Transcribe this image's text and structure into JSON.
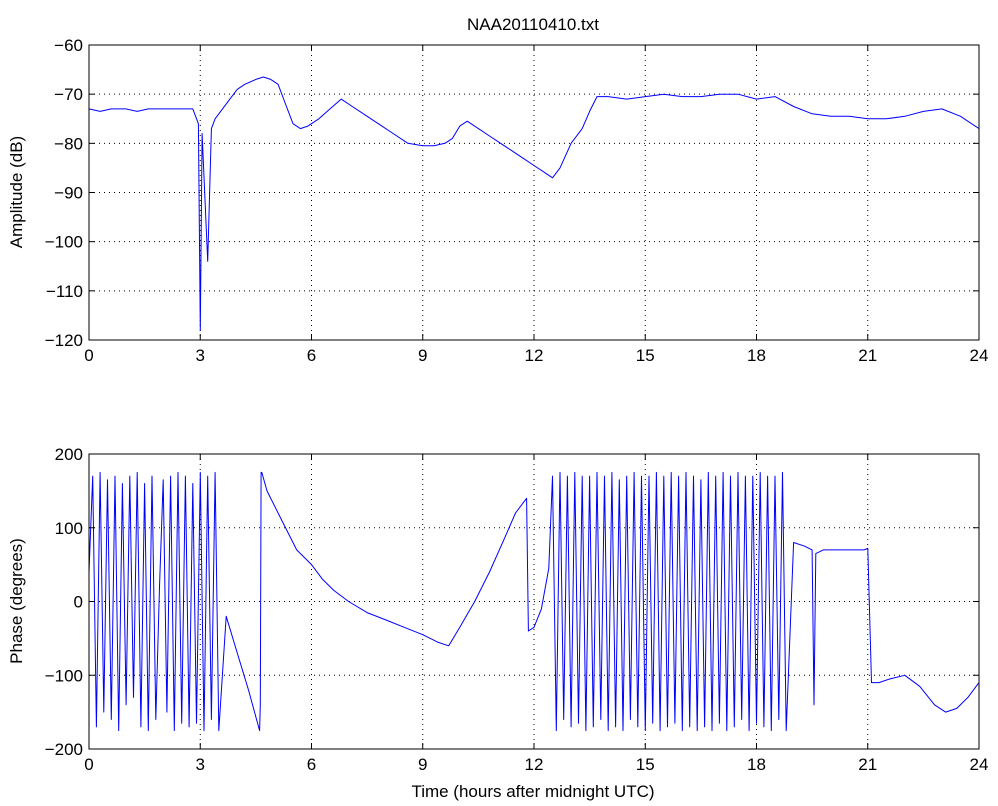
{
  "chart_data": [
    {
      "type": "line",
      "title": "NAA20110410.txt",
      "xlabel": "",
      "ylabel": "Amplitude (dB)",
      "xlim": [
        0,
        24
      ],
      "ylim": [
        -120,
        -60
      ],
      "xticks": [
        "0",
        "3",
        "6",
        "9",
        "12",
        "15",
        "18",
        "21",
        "24"
      ],
      "yticks": [
        "−60",
        "−70",
        "−80",
        "−90",
        "−100",
        "−110",
        "−120"
      ],
      "grid": true,
      "color": "#0000ff",
      "series": [
        {
          "x": [
            0,
            0.3,
            0.6,
            1.0,
            1.3,
            1.6,
            2.0,
            2.4,
            2.8,
            2.95,
            3.0,
            3.05,
            3.2,
            3.3,
            3.4,
            3.6,
            3.8,
            4.0,
            4.2,
            4.5,
            4.7,
            4.9,
            5.1,
            5.3,
            5.5,
            5.7,
            5.9,
            6.2,
            6.5,
            6.8,
            7.1,
            7.4,
            7.8,
            8.2,
            8.6,
            9.0,
            9.3,
            9.6,
            9.8,
            10.0,
            10.2,
            10.5,
            10.8,
            11.1,
            11.4,
            11.7,
            12.0,
            12.3,
            12.5,
            12.7,
            13.0,
            13.3,
            13.5,
            13.7,
            14.0,
            14.5,
            15.0,
            15.5,
            16.0,
            16.5,
            17.0,
            17.5,
            18.0,
            18.5,
            19.0,
            19.5,
            20.0,
            20.5,
            21.0,
            21.5,
            22.0,
            22.5,
            23.0,
            23.5,
            24.0
          ],
          "y": [
            -73,
            -73.5,
            -73,
            -73,
            -73.5,
            -73,
            -73,
            -73,
            -73,
            -76,
            -118,
            -78,
            -104,
            -77,
            -75,
            -73,
            -71,
            -69,
            -68,
            -67,
            -66.5,
            -67,
            -68,
            -72,
            -76,
            -77,
            -76.5,
            -75,
            -73,
            -71,
            -72.5,
            -74,
            -76,
            -78,
            -80,
            -80.5,
            -80.5,
            -80,
            -79,
            -76.5,
            -75.5,
            -77,
            -78.5,
            -80,
            -81.5,
            -83,
            -84.5,
            -86,
            -87,
            -85,
            -80,
            -77,
            -73.5,
            -70.5,
            -70.5,
            -71,
            -70.5,
            -70,
            -70.5,
            -70.5,
            -70,
            -70,
            -71,
            -70.5,
            -72.5,
            -74,
            -74.5,
            -74.5,
            -75,
            -75,
            -74.5,
            -73.5,
            -73,
            -74.5,
            -77
          ]
        }
      ]
    },
    {
      "type": "line",
      "title": "",
      "xlabel": "Time (hours after midnight UTC)",
      "ylabel": "Phase (degrees)",
      "xlim": [
        0,
        24
      ],
      "ylim": [
        -200,
        200
      ],
      "xticks": [
        "0",
        "3",
        "6",
        "9",
        "12",
        "15",
        "18",
        "21",
        "24"
      ],
      "yticks": [
        "200",
        "100",
        "0",
        "−100",
        "−200"
      ],
      "grid": true,
      "color": "#0000ff",
      "series": [
        {
          "x": [
            0,
            0.1,
            0.2,
            0.3,
            0.4,
            0.5,
            0.6,
            0.7,
            0.8,
            0.9,
            1.0,
            1.1,
            1.2,
            1.3,
            1.4,
            1.5,
            1.6,
            1.7,
            1.8,
            1.9,
            2.0,
            2.1,
            2.2,
            2.3,
            2.4,
            2.5,
            2.6,
            2.7,
            2.8,
            2.9,
            3.0,
            3.1,
            3.2,
            3.3,
            3.4,
            3.5,
            3.7,
            4.0,
            4.3,
            4.6,
            4.62,
            4.64,
            4.66,
            4.8,
            5.2,
            5.6,
            6.0,
            6.3,
            6.6,
            7.0,
            7.5,
            8.0,
            8.5,
            9.0,
            9.4,
            9.7,
            10.0,
            10.4,
            10.8,
            11.2,
            11.5,
            11.8,
            11.85,
            12.0,
            12.2,
            12.4,
            12.5,
            12.6,
            12.7,
            12.8,
            12.9,
            13.0,
            13.1,
            13.2,
            13.3,
            13.4,
            13.5,
            13.6,
            13.7,
            13.8,
            13.9,
            14.0,
            14.1,
            14.2,
            14.3,
            14.4,
            14.5,
            14.6,
            14.7,
            14.8,
            14.9,
            15.0,
            15.1,
            15.2,
            15.3,
            15.4,
            15.5,
            15.6,
            15.7,
            15.8,
            15.9,
            16.0,
            16.1,
            16.2,
            16.3,
            16.4,
            16.5,
            16.6,
            16.7,
            16.8,
            16.9,
            17.0,
            17.1,
            17.2,
            17.3,
            17.4,
            17.5,
            17.6,
            17.7,
            17.8,
            17.9,
            18.0,
            18.1,
            18.2,
            18.3,
            18.4,
            18.5,
            18.6,
            18.7,
            18.8,
            19.0,
            19.3,
            19.5,
            19.55,
            19.6,
            19.8,
            20.0,
            20.5,
            20.9,
            21.0,
            21.1,
            21.3,
            21.6,
            22.0,
            22.4,
            22.8,
            23.1,
            23.4,
            23.7,
            24.0
          ],
          "y": [
            40,
            170,
            -170,
            175,
            -150,
            165,
            -160,
            170,
            -175,
            160,
            -140,
            170,
            -130,
            175,
            -170,
            160,
            -175,
            170,
            -160,
            20,
            165,
            -150,
            170,
            -175,
            175,
            -165,
            170,
            -170,
            160,
            -165,
            175,
            -175,
            170,
            -160,
            175,
            -175,
            -20,
            -70,
            -120,
            -175,
            -140,
            175,
            175,
            150,
            110,
            70,
            50,
            30,
            15,
            0,
            -15,
            -25,
            -35,
            -45,
            -55,
            -60,
            -35,
            0,
            40,
            85,
            120,
            140,
            -40,
            -35,
            -10,
            45,
            170,
            -175,
            175,
            -160,
            170,
            -170,
            175,
            -165,
            170,
            -175,
            170,
            -170,
            175,
            -160,
            170,
            -175,
            175,
            -170,
            165,
            -175,
            170,
            -160,
            175,
            -170,
            170,
            -175,
            170,
            -165,
            175,
            -175,
            170,
            -170,
            175,
            -165,
            170,
            -175,
            175,
            -170,
            170,
            -175,
            165,
            -170,
            175,
            -175,
            170,
            -165,
            175,
            -175,
            170,
            -170,
            175,
            -160,
            170,
            -175,
            170,
            -165,
            175,
            -170,
            170,
            -175,
            170,
            -160,
            175,
            -175,
            80,
            75,
            70,
            -140,
            65,
            70,
            70,
            70,
            70,
            72,
            -110,
            -110,
            -105,
            -100,
            -115,
            -140,
            -150,
            -145,
            -130,
            -110
          ]
        }
      ]
    }
  ]
}
